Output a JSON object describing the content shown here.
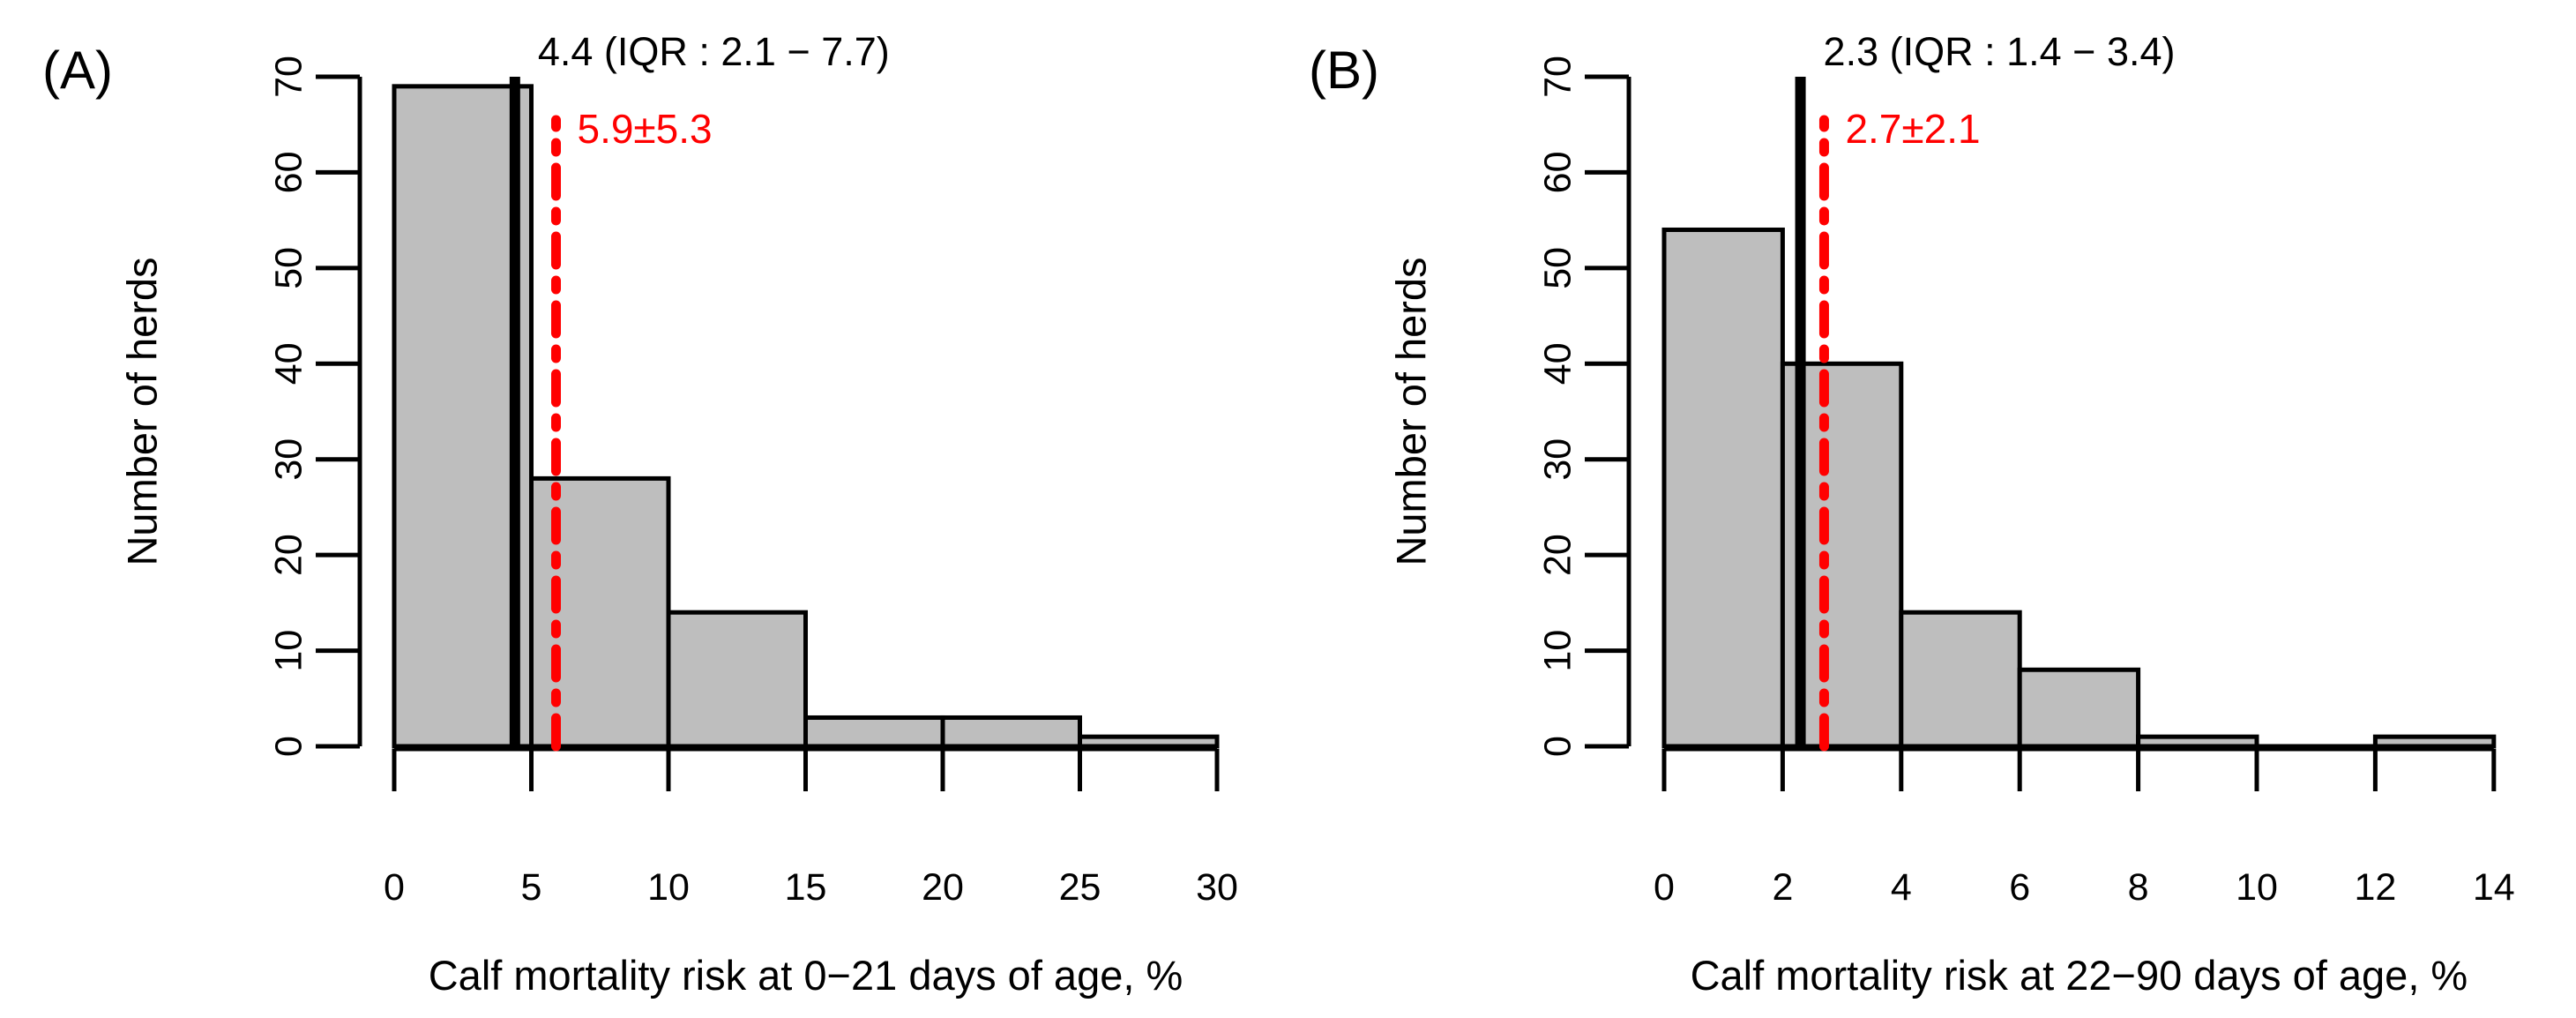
{
  "figure": {
    "background": "#ffffff",
    "bar_fill": "#bebebe",
    "bar_stroke": "#000000",
    "axis_color": "#000000",
    "median_line_color": "#000000",
    "mean_line_color": "#ff0000"
  },
  "chart_data": [
    {
      "type": "bar",
      "subtype": "histogram",
      "panel_label": "(A)",
      "title": "",
      "xlabel": "Calf mortality risk at 0−21 days of age, %",
      "ylabel": "Number of herds",
      "bin_edges": [
        0,
        5,
        10,
        15,
        20,
        25,
        30
      ],
      "counts": [
        69,
        28,
        14,
        3,
        3,
        1
      ],
      "x_ticks": [
        0,
        5,
        10,
        15,
        20,
        25,
        30
      ],
      "y_ticks": [
        0,
        10,
        20,
        30,
        40,
        50,
        60,
        70
      ],
      "xlim": [
        0,
        30
      ],
      "ylim": [
        0,
        70
      ],
      "grid": "off",
      "median_line": {
        "value": 4.4,
        "label": "4.4 (IQR : 2.1 − 7.7)",
        "style": "solid",
        "color": "#000000"
      },
      "mean_line": {
        "value": 5.9,
        "label": "5.9±5.3",
        "style": "dash-dot",
        "color": "#ff0000"
      }
    },
    {
      "type": "bar",
      "subtype": "histogram",
      "panel_label": "(B)",
      "title": "",
      "xlabel": "Calf mortality risk at 22−90 days of age, %",
      "ylabel": "Number of herds",
      "bin_edges": [
        0,
        2,
        4,
        6,
        8,
        10,
        12,
        14
      ],
      "counts": [
        54,
        40,
        14,
        8,
        1,
        0,
        1
      ],
      "x_ticks": [
        0,
        2,
        4,
        6,
        8,
        10,
        12,
        14
      ],
      "y_ticks": [
        0,
        10,
        20,
        30,
        40,
        50,
        60,
        70
      ],
      "xlim": [
        0,
        14
      ],
      "ylim": [
        0,
        70
      ],
      "grid": "off",
      "median_line": {
        "value": 2.3,
        "label": "2.3 (IQR : 1.4 − 3.4)",
        "style": "solid",
        "color": "#000000"
      },
      "mean_line": {
        "value": 2.7,
        "label": "2.7±2.1",
        "style": "dash-dot",
        "color": "#ff0000"
      }
    }
  ]
}
